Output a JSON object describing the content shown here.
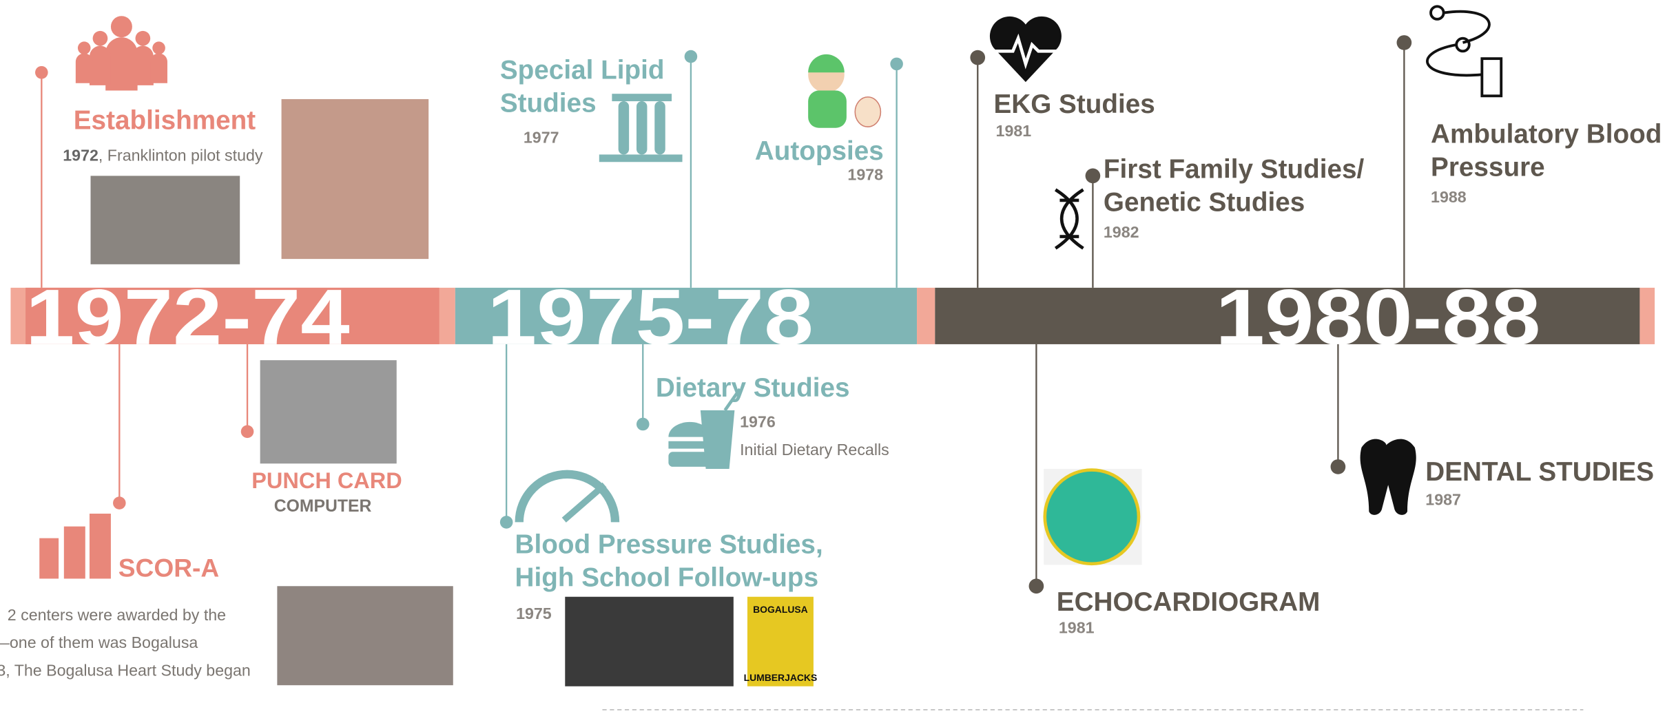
{
  "eras": [
    "1972-74",
    "1975-78",
    "1980-88"
  ],
  "events": {
    "establishment": {
      "title": "Establishment",
      "year": "1972",
      "detail": ", Franklinton pilot study"
    },
    "lipid": {
      "title": [
        "Special Lipid",
        "Studies"
      ],
      "year": "1977"
    },
    "autopsies": {
      "title": "Autopsies",
      "year": "1978"
    },
    "ekg": {
      "title": "EKG Studies",
      "year": "1981"
    },
    "family": {
      "title": [
        "First Family Studies/",
        "Genetic Studies"
      ],
      "year": "1982"
    },
    "ambulatory": {
      "title": [
        "Ambulatory Blood",
        "Pressure"
      ],
      "year": "1988"
    },
    "punch": {
      "title": "PUNCH CARD",
      "subtitle": "COMPUTER"
    },
    "scor": {
      "title": "SCOR-A",
      "lines": [
        "2 centers were awarded by the",
        "—one of them was Bogalusa",
        "3, The Bogalusa Heart Study began"
      ]
    },
    "dietary": {
      "title": "Dietary Studies",
      "year": "1976",
      "detail": "Initial Dietary Recalls"
    },
    "bp": {
      "title": [
        "Blood Pressure Studies,",
        "High School Follow-ups"
      ],
      "year": "1975",
      "logo": [
        "BOGALUSA",
        "LUMBERJACKS"
      ]
    },
    "echo": {
      "title": "ECHOCARDIOGRAM",
      "year": "1981"
    },
    "dental": {
      "title": "DENTAL STUDIES",
      "year": "1987"
    }
  }
}
